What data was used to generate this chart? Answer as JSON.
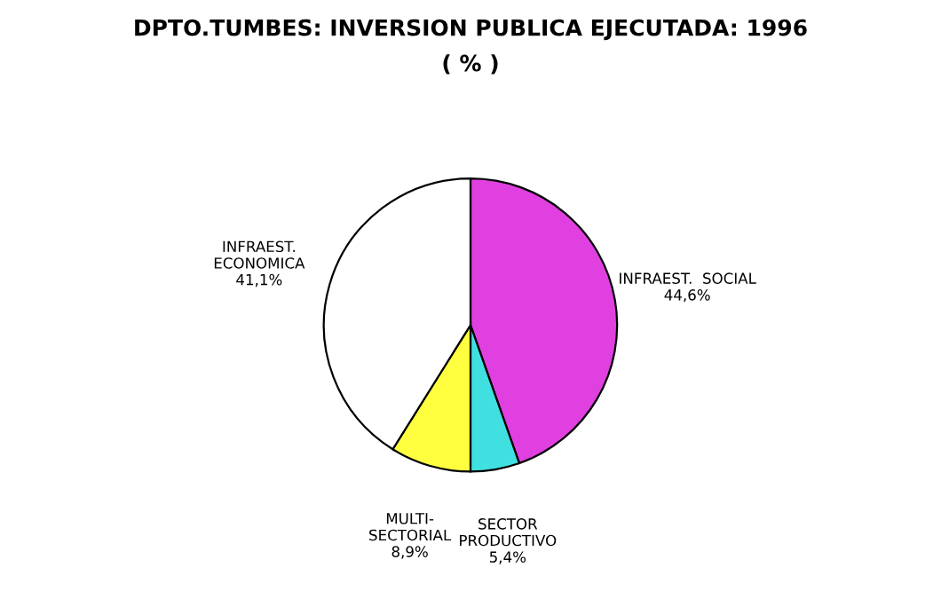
{
  "chart_data": {
    "type": "pie",
    "title": "DPTO.TUMBES: INVERSION PUBLICA EJECUTADA: 1996",
    "subtitle": "( % )",
    "categories": [
      "INFRAEST.  SOCIAL",
      "SECTOR\nPRODUCTIVO",
      "MULTI-\nSECTORIAL",
      "INFRAEST.\nECONOMICA"
    ],
    "values": [
      44.6,
      5.4,
      8.9,
      41.1
    ],
    "value_labels": [
      "44,6%",
      "5,4%",
      "8,9%",
      "41,1%"
    ],
    "colors": [
      "#e040e0",
      "#40e0e0",
      "#ffff40",
      "#ffffff"
    ]
  }
}
